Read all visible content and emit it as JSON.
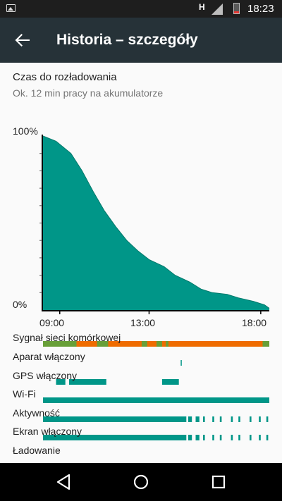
{
  "status_bar": {
    "network_type": "H",
    "time": "18:23",
    "icons": [
      "image-notification-icon",
      "signal-icon",
      "battery-icon"
    ]
  },
  "app_bar": {
    "title": "Historia – szczegóły",
    "back_icon": "arrow-back-icon"
  },
  "details": {
    "title": "Czas do rozładowania",
    "subtitle": "Ok. 12 min pracy na akumulatorze"
  },
  "colors": {
    "accent": "#009688",
    "signal_orange": "#ef6c00",
    "signal_green": "#689f38",
    "app_bar": "#263238",
    "status_bar": "#1e1e1e"
  },
  "chart_data": {
    "type": "area",
    "y_labels": {
      "top": "100%",
      "bottom": "0%"
    },
    "x_ticks": [
      "09:00",
      "13:00",
      "18:00"
    ],
    "ylim": [
      0,
      100
    ],
    "series": [
      {
        "values": [
          {
            "t": "08:15",
            "y": 100
          },
          {
            "t": "08:50",
            "y": 97
          },
          {
            "t": "09:30",
            "y": 90
          },
          {
            "t": "10:00",
            "y": 80
          },
          {
            "t": "10:30",
            "y": 68
          },
          {
            "t": "11:00",
            "y": 57
          },
          {
            "t": "11:30",
            "y": 48
          },
          {
            "t": "12:00",
            "y": 40
          },
          {
            "t": "12:30",
            "y": 34
          },
          {
            "t": "13:00",
            "y": 29
          },
          {
            "t": "13:40",
            "y": 25
          },
          {
            "t": "14:10",
            "y": 20
          },
          {
            "t": "14:50",
            "y": 16
          },
          {
            "t": "15:20",
            "y": 12
          },
          {
            "t": "15:50",
            "y": 10
          },
          {
            "t": "16:30",
            "y": 9
          },
          {
            "t": "17:00",
            "y": 7
          },
          {
            "t": "17:40",
            "y": 5
          },
          {
            "t": "18:10",
            "y": 3
          },
          {
            "t": "18:23",
            "y": 1
          }
        ]
      }
    ]
  },
  "tracks": [
    {
      "label": "Sygnał sieci komórkowej",
      "color": "#ef6c00",
      "segments": [
        {
          "start": "08:15",
          "end": "18:23",
          "color": "#ef6c00"
        },
        {
          "start": "08:15",
          "end": "09:45",
          "color": "#689f38"
        },
        {
          "start": "10:40",
          "end": "11:10",
          "color": "#689f38"
        },
        {
          "start": "12:40",
          "end": "12:55",
          "color": "#689f38"
        },
        {
          "start": "13:20",
          "end": "13:35",
          "color": "#689f38"
        },
        {
          "start": "13:45",
          "end": "13:52",
          "color": "#689f38"
        },
        {
          "start": "18:05",
          "end": "18:23",
          "color": "#689f38"
        }
      ]
    },
    {
      "label": "Aparat włączony",
      "color": "#009688",
      "segments": [
        {
          "start": "14:25",
          "end": "14:27"
        }
      ]
    },
    {
      "label": "GPS włączony",
      "color": "#009688",
      "segments": [
        {
          "start": "08:50",
          "end": "09:15"
        },
        {
          "start": "09:25",
          "end": "11:05"
        },
        {
          "start": "13:35",
          "end": "14:20"
        }
      ]
    },
    {
      "label": "Wi-Fi",
      "color": "#009688",
      "segments": [
        {
          "start": "08:15",
          "end": "18:23"
        }
      ]
    },
    {
      "label": "Aktywność",
      "color": "#009688",
      "segments": [
        {
          "start": "08:15",
          "end": "14:40"
        },
        {
          "start": "14:45",
          "end": "14:55"
        },
        {
          "start": "15:05",
          "end": "15:15"
        },
        {
          "start": "15:25",
          "end": "15:30"
        },
        {
          "start": "15:50",
          "end": "15:55"
        },
        {
          "start": "16:10",
          "end": "16:15"
        },
        {
          "start": "16:40",
          "end": "16:45"
        },
        {
          "start": "17:00",
          "end": "17:05"
        },
        {
          "start": "17:30",
          "end": "17:35"
        },
        {
          "start": "17:55",
          "end": "18:00"
        },
        {
          "start": "18:15",
          "end": "18:20"
        }
      ]
    },
    {
      "label": "Ekran włączony",
      "color": "#009688",
      "segments": [
        {
          "start": "08:15",
          "end": "14:40"
        },
        {
          "start": "14:45",
          "end": "14:55"
        },
        {
          "start": "15:05",
          "end": "15:15"
        },
        {
          "start": "15:25",
          "end": "15:30"
        },
        {
          "start": "15:50",
          "end": "15:55"
        },
        {
          "start": "16:10",
          "end": "16:15"
        },
        {
          "start": "16:40",
          "end": "16:45"
        },
        {
          "start": "17:00",
          "end": "17:05"
        },
        {
          "start": "17:30",
          "end": "17:35"
        },
        {
          "start": "17:55",
          "end": "18:00"
        },
        {
          "start": "18:15",
          "end": "18:20"
        }
      ]
    },
    {
      "label": "Ładowanie",
      "color": "#009688",
      "segments": []
    }
  ],
  "nav_bar": {
    "icons": [
      "back-triangle-icon",
      "home-circle-icon",
      "recents-square-icon"
    ]
  }
}
